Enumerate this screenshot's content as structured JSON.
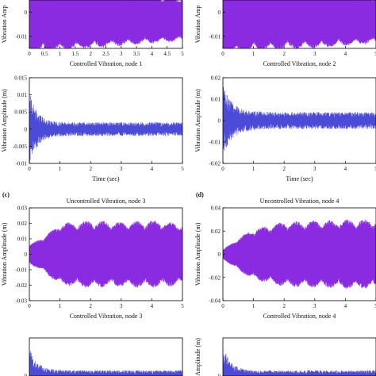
{
  "colors": {
    "uncontrolled": "#8a2be2",
    "uncontrolled_light": "#c9a6f0",
    "controlled": "#4b4bd8",
    "axis": "#000000"
  },
  "chart_data": [
    {
      "id": "a-uncontrolled-1",
      "type": "line",
      "panel_label": "",
      "title": "",
      "xlabel": "Controlled Vibration, node 1",
      "ylabel": "Vibration Amp",
      "xlim": [
        0,
        5
      ],
      "ylim": [
        -0.015,
        0.005
      ],
      "xticks": [
        "0",
        "0.5",
        "1",
        "1.5",
        "2",
        "2.5",
        "3",
        "3.5",
        "4",
        "4.5",
        "5"
      ],
      "yticks": [
        "0",
        "-0.01"
      ],
      "ytick_values": [
        0,
        -0.01
      ],
      "series": [
        {
          "style": "uncontrolled",
          "amplitude_envelope": [
            [
              0,
              0.014
            ],
            [
              1,
              0.013
            ],
            [
              3,
              0.011
            ],
            [
              5,
              0.009
            ]
          ],
          "offset": -0.003
        }
      ]
    },
    {
      "id": "a-uncontrolled-2",
      "type": "line",
      "panel_label": "",
      "title": "",
      "xlabel": "Controlled Vibration, node 2",
      "ylabel": "Vibration Amp",
      "xlim": [
        0,
        5
      ],
      "ylim": [
        -0.015,
        0.005
      ],
      "xticks": [
        "0",
        "1",
        "2",
        "3",
        "4",
        "5"
      ],
      "yticks": [
        "0",
        "-0.01"
      ],
      "ytick_values": [
        0,
        -0.01
      ],
      "series": [
        {
          "style": "uncontrolled",
          "amplitude_envelope": [
            [
              0,
              0.015
            ],
            [
              1,
              0.013
            ],
            [
              3,
              0.012
            ],
            [
              5,
              0.01
            ]
          ],
          "offset": -0.003
        }
      ]
    },
    {
      "id": "a-controlled-1",
      "type": "line",
      "panel_label": "",
      "title": "",
      "xlabel": "Time (sec)",
      "ylabel": "Vibration Amplitude (m)",
      "xlim": [
        0,
        5
      ],
      "ylim": [
        -0.01,
        0.015
      ],
      "xticks": [
        "0",
        "1",
        "2",
        "3",
        "4",
        "5"
      ],
      "yticks": [
        "0.015",
        "0.01",
        "0.005",
        "0",
        "-0.005",
        "-0.01"
      ],
      "ytick_values": [
        0.015,
        0.01,
        0.005,
        0,
        -0.005,
        -0.01
      ],
      "series": [
        {
          "style": "controlled",
          "initial_spike": 0.011,
          "decay_to": 0.002,
          "decay_time": 0.25,
          "steady_amplitude": 0.002
        }
      ]
    },
    {
      "id": "a-controlled-2",
      "type": "line",
      "panel_label": "",
      "title": "",
      "xlabel": "Time (sec)",
      "ylabel": "Vibration Amplitude (m)",
      "xlim": [
        0,
        5
      ],
      "ylim": [
        -0.02,
        0.02
      ],
      "xticks": [
        "0",
        "1",
        "2",
        "3",
        "4",
        "5"
      ],
      "yticks": [
        "0.02",
        "0.01",
        "0",
        "-0.01",
        "-0.02"
      ],
      "ytick_values": [
        0.02,
        0.01,
        0,
        -0.01,
        -0.02
      ],
      "series": [
        {
          "style": "controlled",
          "initial_spike": 0.017,
          "decay_to": 0.004,
          "decay_time": 0.3,
          "steady_amplitude": 0.004
        }
      ]
    },
    {
      "id": "c-uncontrolled-3",
      "type": "line",
      "panel_label": "(c)",
      "title": "Uncontrolled Vibration, node 3",
      "xlabel": "Controlled Vibration, node 3",
      "ylabel": "Vibration Amplitude (m)",
      "xlim": [
        0,
        5
      ],
      "ylim": [
        -0.03,
        0.03
      ],
      "xticks": [
        "0",
        "1",
        "2",
        "3",
        "4",
        "5"
      ],
      "yticks": [
        "0.03",
        "0.02",
        "0.01",
        "0",
        "-0.01",
        "-0.02",
        "-0.03"
      ],
      "ytick_values": [
        0.03,
        0.02,
        0.01,
        0,
        -0.01,
        -0.02,
        -0.03
      ],
      "series": [
        {
          "style": "uncontrolled",
          "amplitude_envelope": [
            [
              0,
              0.006
            ],
            [
              0.5,
              0.012
            ],
            [
              1,
              0.02
            ],
            [
              2,
              0.022
            ],
            [
              3,
              0.021
            ],
            [
              4,
              0.022
            ],
            [
              5,
              0.02
            ]
          ],
          "offset": 0
        }
      ]
    },
    {
      "id": "d-uncontrolled-4",
      "type": "line",
      "panel_label": "(d)",
      "title": "Uncontrolled Vibration, node 4",
      "xlabel": "Controlled Vibration, node 4",
      "ylabel": "Vibration Amplitude (m)",
      "xlim": [
        0,
        5
      ],
      "ylim": [
        -0.04,
        0.04
      ],
      "xticks": [
        "0",
        "1",
        "2",
        "3",
        "4",
        "5"
      ],
      "yticks": [
        "0.04",
        "0.02",
        "0",
        "-0.02",
        "-0.04"
      ],
      "ytick_values": [
        0.04,
        0.02,
        0,
        -0.02,
        -0.04
      ],
      "series": [
        {
          "style": "uncontrolled",
          "amplitude_envelope": [
            [
              0,
              0.004
            ],
            [
              0.5,
              0.014
            ],
            [
              1,
              0.022
            ],
            [
              2,
              0.028
            ],
            [
              3,
              0.029
            ],
            [
              4,
              0.03
            ],
            [
              5,
              0.03
            ]
          ],
          "offset": 0
        }
      ]
    },
    {
      "id": "c-controlled-3",
      "type": "line",
      "panel_label": "",
      "title": "",
      "xlabel": "",
      "ylabel": "",
      "xlim": [
        0,
        5
      ],
      "ylim": [
        0,
        0.02
      ],
      "xticks": [],
      "yticks": [
        "0"
      ],
      "ytick_values": [
        0
      ],
      "series": [
        {
          "style": "controlled",
          "initial_spike": 0.015,
          "decay_to": 0.003,
          "decay_time": 0.25,
          "steady_amplitude": 0.003
        }
      ]
    },
    {
      "id": "d-controlled-4",
      "type": "line",
      "panel_label": "",
      "title": "",
      "xlabel": "",
      "ylabel": "Amplitude (m)",
      "xlim": [
        0,
        5
      ],
      "ylim": [
        0,
        0.02
      ],
      "xticks": [],
      "yticks": [
        "0"
      ],
      "ytick_values": [
        0
      ],
      "series": [
        {
          "style": "controlled",
          "initial_spike": 0.016,
          "decay_to": 0.003,
          "decay_time": 0.25,
          "steady_amplitude": 0.003
        }
      ]
    }
  ]
}
